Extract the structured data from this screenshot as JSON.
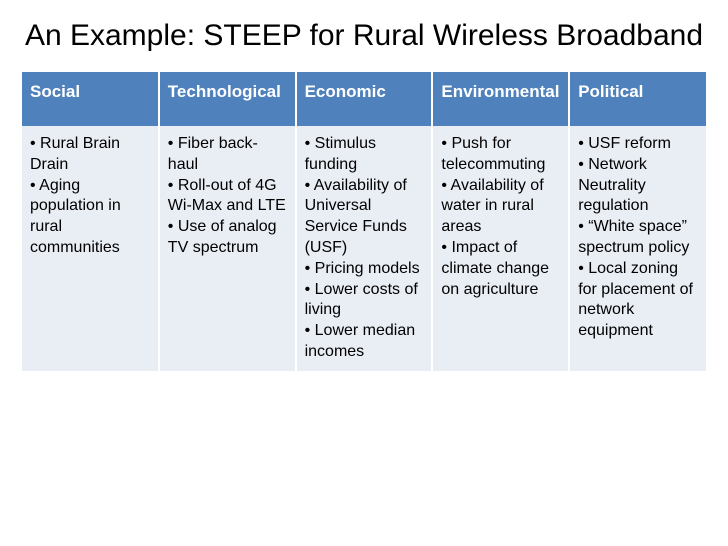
{
  "title": "An Example: STEEP for Rural Wireless Broadband",
  "colors": {
    "header_bg": "#4f81bd",
    "header_text": "#ffffff",
    "cell_bg": "#e9edf4",
    "cell_text": "#000000",
    "title_text": "#000000",
    "slide_bg": "#ffffff"
  },
  "typography": {
    "title_fontsize": 30,
    "header_fontsize": 17,
    "cell_fontsize": 16
  },
  "table": {
    "columns": [
      {
        "label": "Social"
      },
      {
        "label": "Technological"
      },
      {
        "label": "Economic"
      },
      {
        "label": "Environmental"
      },
      {
        "label": "Political"
      }
    ],
    "rows": [
      [
        "• Rural Brain Drain\n• Aging population in rural communities",
        "• Fiber back-haul\n• Roll-out of 4G Wi-Max and LTE\n• Use of analog TV spectrum",
        "• Stimulus funding\n• Availability of Universal Service Funds (USF)\n• Pricing models\n• Lower costs of living\n• Lower median incomes",
        "• Push for telecommuting\n• Availability of water in rural areas\n• Impact of climate change on agriculture",
        "• USF reform\n• Network Neutrality regulation\n• “White space” spectrum policy\n• Local zoning for placement of network equipment"
      ]
    ]
  }
}
